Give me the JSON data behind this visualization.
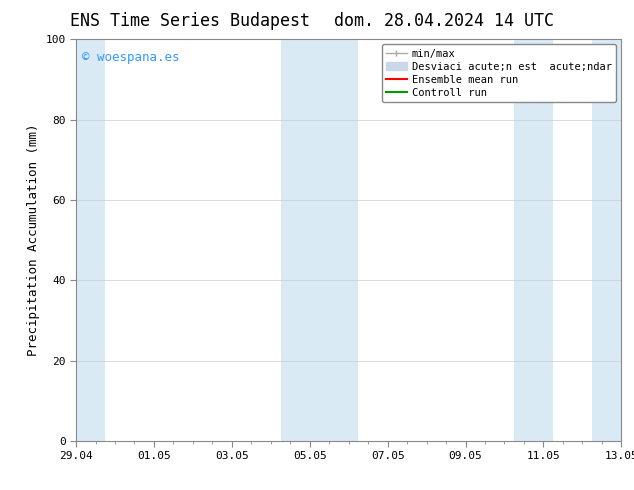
{
  "title_left": "ENS Time Series Budapest",
  "title_right": "dom. 28.04.2024 14 UTC",
  "ylabel": "Precipitation Accumulation (mm)",
  "ylim": [
    0,
    100
  ],
  "yticks": [
    0,
    20,
    40,
    60,
    80,
    100
  ],
  "xtick_labels": [
    "29.04",
    "01.05",
    "03.05",
    "05.05",
    "07.05",
    "09.05",
    "11.05",
    "13.05"
  ],
  "background_color": "#ffffff",
  "plot_bg_color": "#ffffff",
  "shaded_color": "#daeaf5",
  "watermark_text": "© woespana.es",
  "watermark_color": "#3399ff",
  "legend_labels": [
    "min/max",
    "Desviaci acute;n est  acute;ndar",
    "Ensemble mean run",
    "Controll run"
  ],
  "legend_colors": [
    "#aaaaaa",
    "#c8d8e8",
    "#ff0000",
    "#009900"
  ],
  "title_fontsize": 12,
  "axis_fontsize": 9,
  "tick_fontsize": 8,
  "legend_fontsize": 7.5
}
